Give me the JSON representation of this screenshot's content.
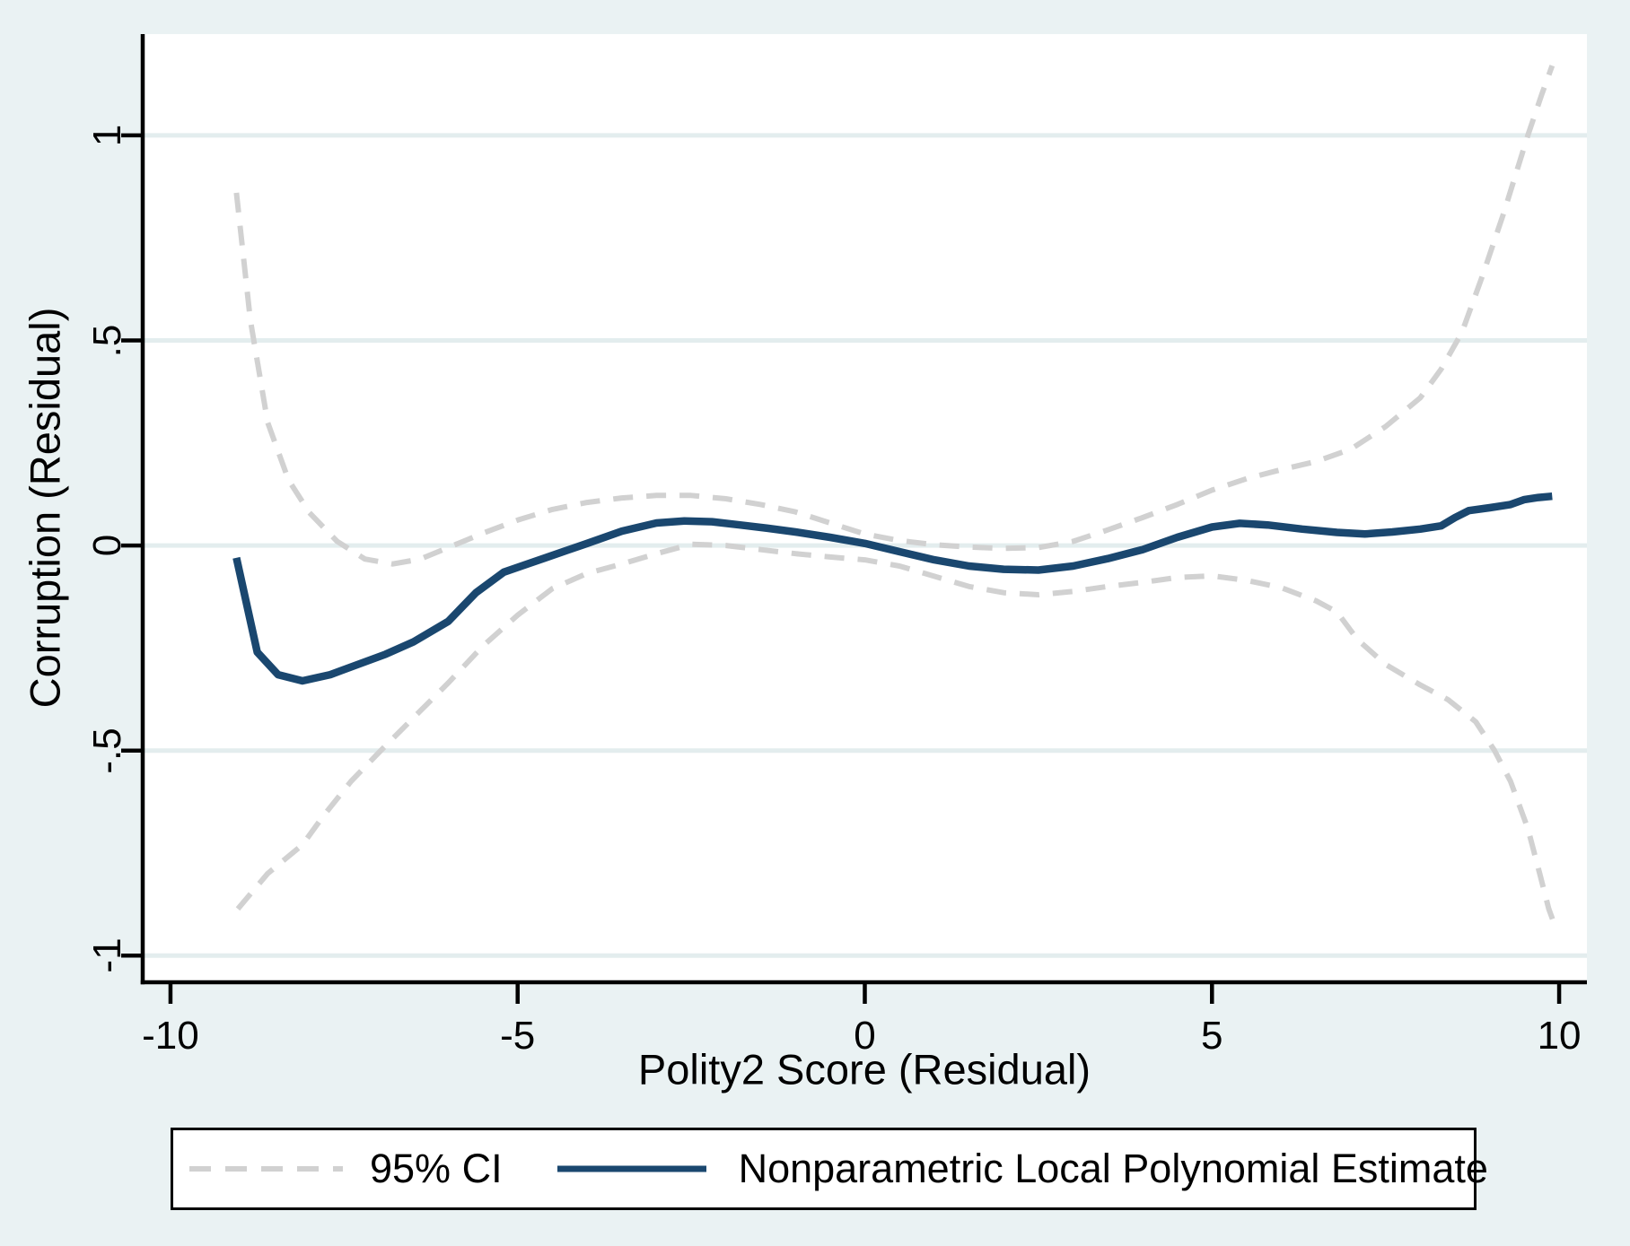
{
  "figure": {
    "background_color": "#eaf2f3",
    "plot_background_color": "#ffffff",
    "grid_color": "#e3edee",
    "axis_color": "#000000",
    "ci_color": "#d1d1d1",
    "estimate_color": "#1a476f"
  },
  "axes": {
    "x": {
      "title": "Polity2 Score (Residual)",
      "ticks": [
        -10,
        -5,
        0,
        5,
        10
      ],
      "tick_labels": [
        "-10",
        "-5",
        "0",
        "5",
        "10"
      ],
      "range": [
        -10.4,
        10.4
      ]
    },
    "y": {
      "title": "Corruption (Residual)",
      "ticks": [
        -1,
        -0.5,
        0,
        0.5,
        1
      ],
      "tick_labels": [
        "-1",
        "-.5",
        "0",
        ".5",
        "1"
      ],
      "range": [
        -1.065,
        1.247
      ]
    }
  },
  "legend": {
    "items": [
      {
        "label": "95% CI",
        "style": "dashed"
      },
      {
        "label": "Nonparametric Local Polynomial Estimate",
        "style": "solid"
      }
    ]
  },
  "chart_data": {
    "type": "line",
    "title": "",
    "xlabel": "Polity2 Score (Residual)",
    "ylabel": "Corruption (Residual)",
    "xlim": [
      -10.4,
      10.4
    ],
    "ylim": [
      -1.065,
      1.247
    ],
    "grid": "horizontal",
    "legend_position": "bottom",
    "series": [
      {
        "name": "95% CI upper",
        "style": "dashed",
        "color": "#d1d1d1",
        "points": [
          [
            -9.05,
            0.86
          ],
          [
            -8.85,
            0.55
          ],
          [
            -8.6,
            0.3
          ],
          [
            -8.3,
            0.16
          ],
          [
            -8.0,
            0.08
          ],
          [
            -7.6,
            0.01
          ],
          [
            -7.2,
            -0.033
          ],
          [
            -6.8,
            -0.045
          ],
          [
            -6.4,
            -0.033
          ],
          [
            -6.0,
            -0.005
          ],
          [
            -5.5,
            0.03
          ],
          [
            -5.0,
            0.062
          ],
          [
            -4.5,
            0.088
          ],
          [
            -4.0,
            0.105
          ],
          [
            -3.5,
            0.116
          ],
          [
            -3.0,
            0.122
          ],
          [
            -2.5,
            0.122
          ],
          [
            -2.0,
            0.114
          ],
          [
            -1.5,
            0.1
          ],
          [
            -1.0,
            0.082
          ],
          [
            -0.5,
            0.055
          ],
          [
            0.0,
            0.028
          ],
          [
            0.5,
            0.012
          ],
          [
            1.0,
            0.002
          ],
          [
            1.5,
            -0.004
          ],
          [
            2.0,
            -0.007
          ],
          [
            2.5,
            -0.005
          ],
          [
            3.0,
            0.01
          ],
          [
            3.5,
            0.038
          ],
          [
            4.0,
            0.068
          ],
          [
            4.5,
            0.1
          ],
          [
            5.0,
            0.135
          ],
          [
            5.5,
            0.163
          ],
          [
            6.0,
            0.185
          ],
          [
            6.5,
            0.205
          ],
          [
            7.0,
            0.235
          ],
          [
            7.5,
            0.29
          ],
          [
            8.0,
            0.36
          ],
          [
            8.3,
            0.43
          ],
          [
            8.6,
            0.52
          ],
          [
            8.9,
            0.66
          ],
          [
            9.2,
            0.81
          ],
          [
            9.55,
            1.0
          ],
          [
            9.75,
            1.1
          ],
          [
            9.9,
            1.17
          ]
        ]
      },
      {
        "name": "95% CI lower",
        "style": "dashed",
        "color": "#d1d1d1",
        "points": [
          [
            -9.03,
            -0.886
          ],
          [
            -8.6,
            -0.8
          ],
          [
            -8.1,
            -0.73
          ],
          [
            -7.8,
            -0.66
          ],
          [
            -7.4,
            -0.575
          ],
          [
            -7.0,
            -0.505
          ],
          [
            -6.5,
            -0.42
          ],
          [
            -6.0,
            -0.335
          ],
          [
            -5.5,
            -0.245
          ],
          [
            -5.0,
            -0.17
          ],
          [
            -4.5,
            -0.105
          ],
          [
            -4.0,
            -0.068
          ],
          [
            -3.5,
            -0.045
          ],
          [
            -3.0,
            -0.02
          ],
          [
            -2.5,
            0.003
          ],
          [
            -2.0,
            0.0
          ],
          [
            -1.5,
            -0.01
          ],
          [
            -1.0,
            -0.02
          ],
          [
            -0.5,
            -0.028
          ],
          [
            0.0,
            -0.035
          ],
          [
            0.5,
            -0.05
          ],
          [
            1.0,
            -0.075
          ],
          [
            1.5,
            -0.1
          ],
          [
            2.0,
            -0.115
          ],
          [
            2.5,
            -0.12
          ],
          [
            3.0,
            -0.112
          ],
          [
            3.5,
            -0.1
          ],
          [
            4.0,
            -0.09
          ],
          [
            4.5,
            -0.078
          ],
          [
            5.0,
            -0.074
          ],
          [
            5.5,
            -0.085
          ],
          [
            6.0,
            -0.103
          ],
          [
            6.5,
            -0.135
          ],
          [
            6.8,
            -0.162
          ],
          [
            7.1,
            -0.23
          ],
          [
            7.5,
            -0.29
          ],
          [
            8.0,
            -0.34
          ],
          [
            8.4,
            -0.376
          ],
          [
            8.8,
            -0.43
          ],
          [
            9.07,
            -0.5
          ],
          [
            9.3,
            -0.575
          ],
          [
            9.55,
            -0.69
          ],
          [
            9.72,
            -0.8
          ],
          [
            9.85,
            -0.886
          ],
          [
            9.96,
            -0.937
          ]
        ]
      },
      {
        "name": "Nonparametric Local Polynomial Estimate",
        "style": "solid",
        "color": "#1a476f",
        "points": [
          [
            -9.05,
            -0.03
          ],
          [
            -8.75,
            -0.26
          ],
          [
            -8.45,
            -0.315
          ],
          [
            -8.1,
            -0.33
          ],
          [
            -7.7,
            -0.315
          ],
          [
            -7.3,
            -0.29
          ],
          [
            -6.9,
            -0.265
          ],
          [
            -6.5,
            -0.235
          ],
          [
            -6.0,
            -0.185
          ],
          [
            -5.6,
            -0.115
          ],
          [
            -5.2,
            -0.065
          ],
          [
            -4.6,
            -0.03
          ],
          [
            -4.0,
            0.005
          ],
          [
            -3.5,
            0.035
          ],
          [
            -3.0,
            0.055
          ],
          [
            -2.6,
            0.06
          ],
          [
            -2.2,
            0.058
          ],
          [
            -1.8,
            0.05
          ],
          [
            -1.4,
            0.042
          ],
          [
            -1.0,
            0.033
          ],
          [
            -0.5,
            0.02
          ],
          [
            0.0,
            0.005
          ],
          [
            0.5,
            -0.015
          ],
          [
            1.0,
            -0.035
          ],
          [
            1.5,
            -0.05
          ],
          [
            2.0,
            -0.058
          ],
          [
            2.5,
            -0.06
          ],
          [
            3.0,
            -0.05
          ],
          [
            3.5,
            -0.032
          ],
          [
            4.0,
            -0.01
          ],
          [
            4.5,
            0.02
          ],
          [
            5.0,
            0.045
          ],
          [
            5.4,
            0.054
          ],
          [
            5.8,
            0.05
          ],
          [
            6.3,
            0.04
          ],
          [
            6.8,
            0.032
          ],
          [
            7.2,
            0.028
          ],
          [
            7.6,
            0.033
          ],
          [
            8.0,
            0.04
          ],
          [
            8.3,
            0.048
          ],
          [
            8.5,
            0.068
          ],
          [
            8.7,
            0.085
          ],
          [
            9.0,
            0.092
          ],
          [
            9.3,
            0.1
          ],
          [
            9.5,
            0.112
          ],
          [
            9.7,
            0.117
          ],
          [
            9.9,
            0.12
          ]
        ]
      }
    ]
  }
}
